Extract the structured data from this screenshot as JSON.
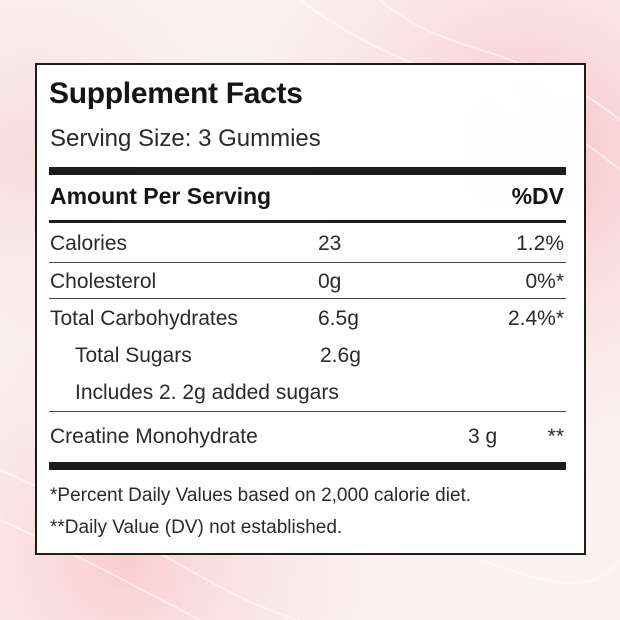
{
  "label": {
    "title": "Supplement Facts",
    "serving_size": "Serving Size: 3 Gummies",
    "header": {
      "amount": "Amount Per Serving",
      "dv": "%DV"
    },
    "rows": [
      {
        "name": "Calories",
        "amount": "23",
        "dv": "1.2%"
      },
      {
        "name": "Cholesterol",
        "amount": "0g",
        "dv": "0%*"
      },
      {
        "name": "Total Carbohydrates",
        "amount": "6.5g",
        "dv": "2.4%*"
      },
      {
        "name": "Total Sugars",
        "amount": "2.6g",
        "dv": ""
      },
      {
        "name": "Includes 2. 2g added sugars",
        "amount": "",
        "dv": ""
      },
      {
        "name": "Creatine Monohydrate",
        "amount": "3 g",
        "dv": "**"
      }
    ],
    "footnotes": [
      "*Percent Daily Values based on 2,000 calorie diet.",
      "**Daily Value (DV) not established."
    ]
  },
  "colors": {
    "text": "#1a1a1a",
    "border": "#1c1c1c",
    "background_pink": "#f7c9cc"
  }
}
